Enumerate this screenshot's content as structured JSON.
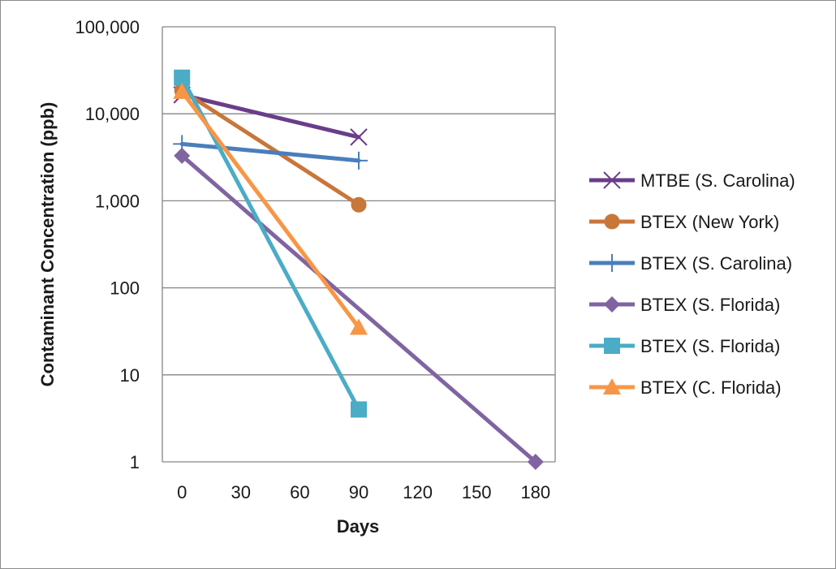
{
  "chart_data": {
    "type": "line",
    "title": "",
    "xlabel": "Days",
    "ylabel": "Contaminant Concentration (ppb)",
    "x_ticks": [
      "0",
      "30",
      "60",
      "90",
      "120",
      "150",
      "180"
    ],
    "xlim": [
      -10,
      190
    ],
    "y_scale": "log",
    "ylim": [
      1,
      100000
    ],
    "y_ticks": [
      1,
      10,
      100,
      1000,
      10000,
      100000
    ],
    "y_tick_labels": [
      "1",
      "10",
      "100",
      "1,000",
      "10,000",
      "100,000"
    ],
    "grid": "horizontal",
    "legend_position": "right",
    "series": [
      {
        "name": "MTBE (S. Carolina)",
        "color": "#6a3d8a",
        "marker": "x",
        "x": [
          0,
          90
        ],
        "y": [
          16500,
          5400
        ]
      },
      {
        "name": "BTEX (New York)",
        "color": "#c8763a",
        "marker": "circle",
        "x": [
          0,
          90
        ],
        "y": [
          18500,
          900
        ]
      },
      {
        "name": "BTEX (S. Carolina)",
        "color": "#4a7ebb",
        "marker": "plus",
        "x": [
          0,
          90
        ],
        "y": [
          4500,
          2900
        ]
      },
      {
        "name": "BTEX (S. Florida)",
        "color": "#8064a2",
        "marker": "diamond",
        "x": [
          0,
          180
        ],
        "y": [
          3300,
          1
        ]
      },
      {
        "name": "BTEX (S. Florida)",
        "color": "#4bacc6",
        "marker": "square",
        "x": [
          0,
          90
        ],
        "y": [
          26000,
          4
        ]
      },
      {
        "name": "BTEX (C. Florida)",
        "color": "#f79646",
        "marker": "triangle",
        "x": [
          0,
          90
        ],
        "y": [
          18000,
          35
        ]
      }
    ]
  }
}
